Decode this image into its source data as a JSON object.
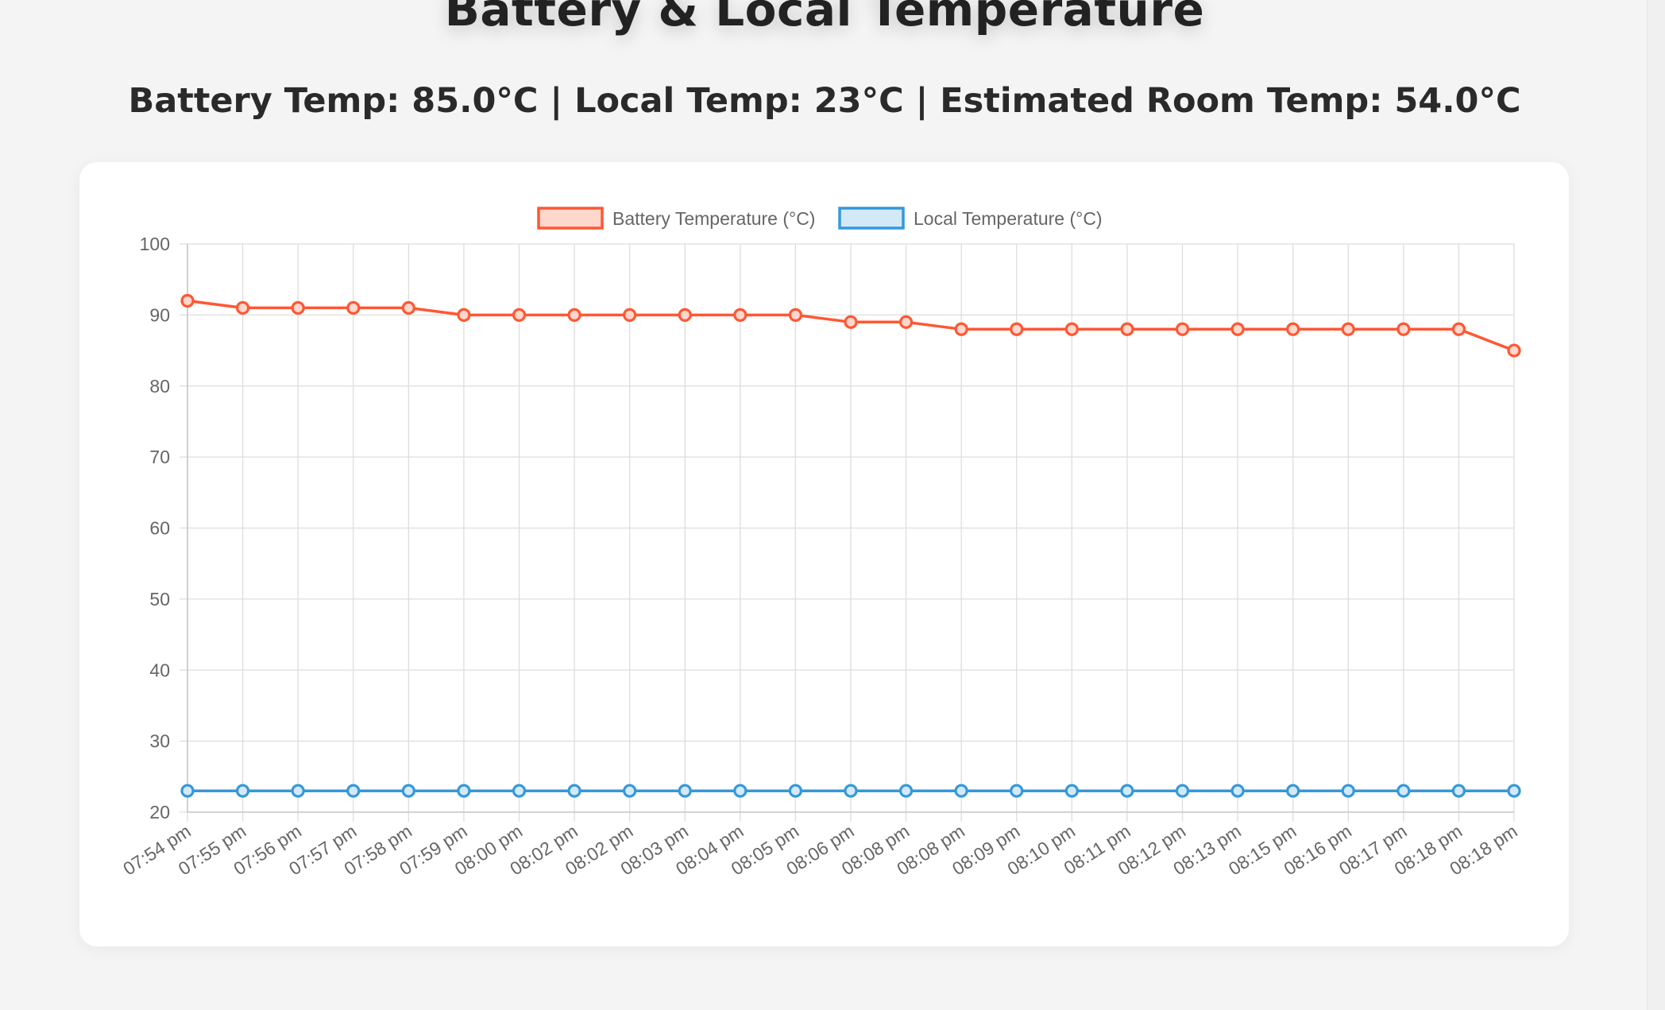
{
  "header": {
    "title": "Battery & Local Temperature",
    "status_line": "Battery Temp: 85.0°C | Local Temp: 23°C | Estimated Room Temp: 54.0°C"
  },
  "chart_data": {
    "type": "line",
    "title": "",
    "xlabel": "",
    "ylabel": "",
    "ylim": [
      20,
      100
    ],
    "yticks": [
      20,
      30,
      40,
      50,
      60,
      70,
      80,
      90,
      100
    ],
    "grid": true,
    "legend_position": "top-center",
    "categories": [
      "07:54 pm",
      "07:55 pm",
      "07:56 pm",
      "07:57 pm",
      "07:58 pm",
      "07:59 pm",
      "08:00 pm",
      "08:02 pm",
      "08:02 pm",
      "08:03 pm",
      "08:04 pm",
      "08:05 pm",
      "08:06 pm",
      "08:08 pm",
      "08:08 pm",
      "08:09 pm",
      "08:10 pm",
      "08:11 pm",
      "08:12 pm",
      "08:13 pm",
      "08:15 pm",
      "08:16 pm",
      "08:17 pm",
      "08:18 pm",
      "08:18 pm"
    ],
    "series": [
      {
        "name": "Battery Temperature (°C)",
        "color": "#ff5733",
        "fill": "#ffd7cc",
        "values": [
          92,
          91,
          91,
          91,
          91,
          90,
          90,
          90,
          90,
          90,
          90,
          90,
          89,
          89,
          88,
          88,
          88,
          88,
          88,
          88,
          88,
          88,
          88,
          88,
          85
        ]
      },
      {
        "name": "Local Temperature (°C)",
        "color": "#3498db",
        "fill": "#d4e9f8",
        "values": [
          23,
          23,
          23,
          23,
          23,
          23,
          23,
          23,
          23,
          23,
          23,
          23,
          23,
          23,
          23,
          23,
          23,
          23,
          23,
          23,
          23,
          23,
          23,
          23,
          23
        ]
      }
    ]
  }
}
